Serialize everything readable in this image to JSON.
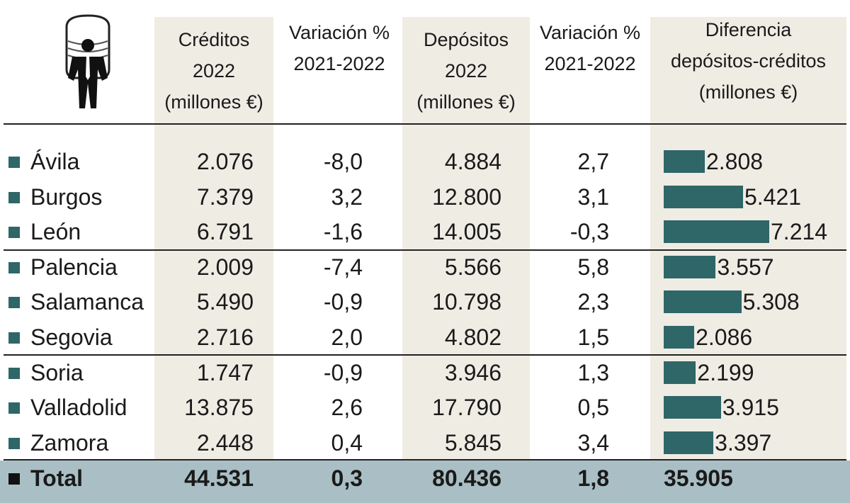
{
  "chart_data": {
    "type": "table",
    "columns": [
      "Créditos\n2022\n(millones €)",
      "Variación %\n2021-2022",
      "Depósitos\n2022\n(millones €)",
      "Variación %\n2021-2022",
      "Diferencia\ndepósitos-créditos\n(millones €)"
    ],
    "rows": [
      {
        "name": "Ávila",
        "creditos": "2.076",
        "var_cred": "-8,0",
        "depositos": "4.884",
        "var_dep": "2,7",
        "diferencia": "2.808",
        "diff_value": 2808
      },
      {
        "name": "Burgos",
        "creditos": "7.379",
        "var_cred": "3,2",
        "depositos": "12.800",
        "var_dep": "3,1",
        "diferencia": "5.421",
        "diff_value": 5421
      },
      {
        "name": "León",
        "creditos": "6.791",
        "var_cred": "-1,6",
        "depositos": "14.005",
        "var_dep": "-0,3",
        "diferencia": "7.214",
        "diff_value": 7214
      },
      {
        "name": "Palencia",
        "creditos": "2.009",
        "var_cred": "-7,4",
        "depositos": "5.566",
        "var_dep": "5,8",
        "diferencia": "3.557",
        "diff_value": 3557
      },
      {
        "name": "Salamanca",
        "creditos": "5.490",
        "var_cred": "-0,9",
        "depositos": "10.798",
        "var_dep": "2,3",
        "diferencia": "5.308",
        "diff_value": 5308
      },
      {
        "name": "Segovia",
        "creditos": "2.716",
        "var_cred": "2,0",
        "depositos": "4.802",
        "var_dep": "1,5",
        "diferencia": "2.086",
        "diff_value": 2086
      },
      {
        "name": "Soria",
        "creditos": "1.747",
        "var_cred": "-0,9",
        "depositos": "3.946",
        "var_dep": "1,3",
        "diferencia": "2.199",
        "diff_value": 2199
      },
      {
        "name": "Valladolid",
        "creditos": "13.875",
        "var_cred": "2,6",
        "depositos": "17.790",
        "var_dep": "0,5",
        "diferencia": "3.915",
        "diff_value": 3915
      },
      {
        "name": "Zamora",
        "creditos": "2.448",
        "var_cred": "0,4",
        "depositos": "5.845",
        "var_dep": "3,4",
        "diferencia": "3.397",
        "diff_value": 3397
      }
    ],
    "total": {
      "name": "Total",
      "creditos": "44.531",
      "var_cred": "0,3",
      "depositos": "80.436",
      "var_dep": "1,8",
      "diferencia": "35.905"
    },
    "bar_color": "#2f6668",
    "shade_color": "#efece4",
    "total_color": "#a9bfc5"
  },
  "logo": {
    "icon": "businessman-coins-icon"
  }
}
